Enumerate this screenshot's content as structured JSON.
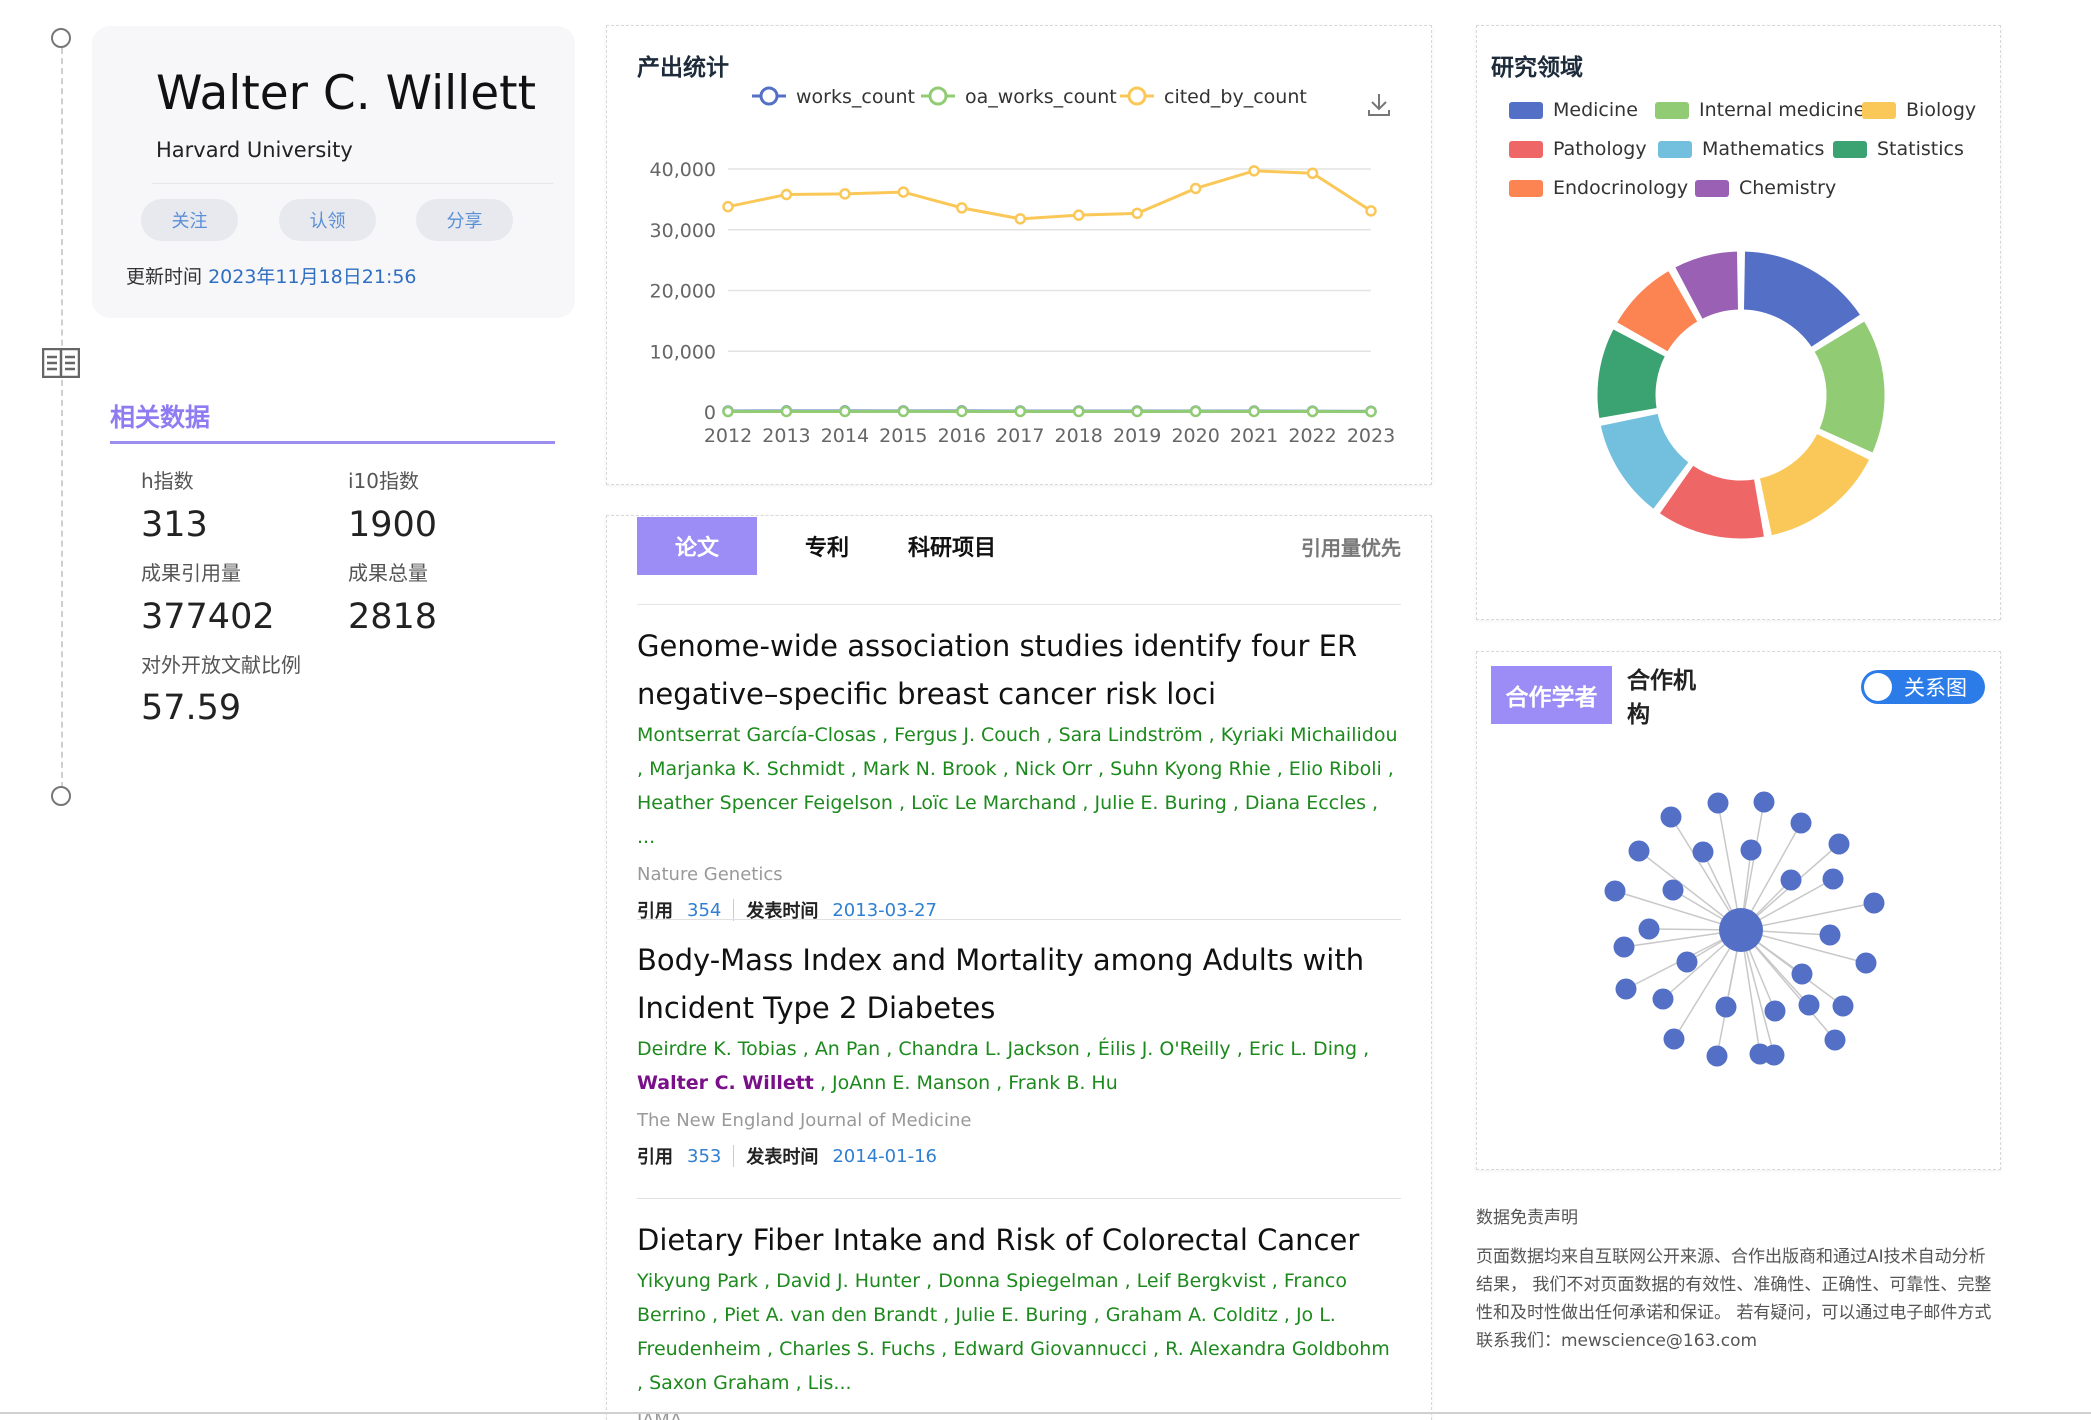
{
  "profile": {
    "name": "Walter C. Willett",
    "institution": "Harvard University",
    "buttons": {
      "follow": "关注",
      "claim": "认领",
      "share": "分享"
    },
    "updated_label": "更新时间",
    "updated_value": "2023年11月18日21:56"
  },
  "related": {
    "title": "相关数据",
    "metrics": [
      {
        "label": "h指数",
        "value": "313"
      },
      {
        "label": "i10指数",
        "value": "1900"
      },
      {
        "label": "成果引用量",
        "value": "377402"
      },
      {
        "label": "成果总量",
        "value": "2818"
      },
      {
        "label": "对外开放文献比例",
        "value": "57.59"
      }
    ]
  },
  "output_stats": {
    "title": "产出统计",
    "icon": "download-icon",
    "chart_data": {
      "type": "line",
      "x": [
        "2012",
        "2013",
        "2014",
        "2015",
        "2016",
        "2017",
        "2018",
        "2019",
        "2020",
        "2021",
        "2022",
        "2023"
      ],
      "series": [
        {
          "name": "works_count",
          "color": "#5470c6",
          "values": [
            150,
            160,
            160,
            170,
            160,
            150,
            150,
            150,
            150,
            140,
            130,
            110
          ]
        },
        {
          "name": "oa_works_count",
          "color": "#91cc75",
          "values": [
            80,
            90,
            90,
            100,
            90,
            90,
            90,
            90,
            100,
            90,
            80,
            70
          ]
        },
        {
          "name": "cited_by_count",
          "color": "#fac858",
          "values": [
            33800,
            35800,
            35900,
            36200,
            33600,
            31800,
            32400,
            32700,
            36800,
            39700,
            39300,
            33100
          ]
        }
      ],
      "y_ticks": [
        "0",
        "10,000",
        "20,000",
        "30,000",
        "40,000"
      ],
      "ylim": [
        0,
        40000
      ],
      "grid": true,
      "legend": "top"
    }
  },
  "papers": {
    "tabs": [
      "论文",
      "专利",
      "科研项目"
    ],
    "sort_label": "引用量优先",
    "cite_label": "引用",
    "date_label": "发表时间",
    "items": [
      {
        "title": "Genome-wide association studies identify four ER negative–specific breast cancer risk loci",
        "authors": [
          "Montserrat García-Closas",
          "Fergus J. Couch",
          "Sara Lindström",
          "Kyriaki Michailidou",
          "Marjanka K. Schmidt",
          "Mark N. Brook",
          "Nick Orr",
          "Suhn Kyong Rhie",
          "Elio Riboli",
          "Heather Spencer Feigelson",
          "Loïc Le Marchand",
          "Julie E. Buring",
          "Diana Eccles"
        ],
        "authors_more": "...",
        "journal": "Nature Genetics",
        "citations": "354",
        "date": "2013-03-27"
      },
      {
        "title": "Body-Mass Index and Mortality among Adults with Incident Type 2 Diabetes",
        "authors": [
          "Deirdre K. Tobias",
          "An Pan",
          "Chandra L. Jackson",
          "Éilis J. O'Reilly",
          "Eric L. Ding",
          "Walter C. Willett",
          "JoAnn E. Manson",
          "Frank B. Hu"
        ],
        "self_author": "Walter C. Willett",
        "journal": "The New England Journal of Medicine",
        "citations": "353",
        "date": "2014-01-16"
      },
      {
        "title": "Dietary Fiber Intake and Risk of Colorectal Cancer",
        "authors": [
          "Yikyung Park",
          "David J. Hunter",
          "Donna Spiegelman",
          "Leif Bergkvist",
          "Franco Berrino",
          "Piet A. van den Brandt",
          "Julie E. Buring",
          "Graham A. Colditz",
          "Jo L. Freudenheim",
          "Charles S. Fuchs",
          "Edward Giovannucci",
          "R. Alexandra Goldbohm",
          "Saxon Graham"
        ],
        "authors_more": "Lis...",
        "journal": "JAMA"
      }
    ]
  },
  "research": {
    "title": "研究领域",
    "chart_data": {
      "type": "pie",
      "donut": true,
      "legend": "top",
      "slices": [
        {
          "name": "Medicine",
          "color": "#5470c6",
          "value": 16
        },
        {
          "name": "Internal medicine",
          "color": "#91cc75",
          "value": 16
        },
        {
          "name": "Biology",
          "color": "#fac858",
          "value": 15
        },
        {
          "name": "Pathology",
          "color": "#ee6666",
          "value": 13
        },
        {
          "name": "Mathematics",
          "color": "#73c0de",
          "value": 12
        },
        {
          "name": "Statistics",
          "color": "#3ba272",
          "value": 11
        },
        {
          "name": "Endocrinology",
          "color": "#fc8452",
          "value": 9
        },
        {
          "name": "Chemistry",
          "color": "#9a60b4",
          "value": 8
        }
      ]
    }
  },
  "collab": {
    "tabs": [
      "合作学者",
      "合作机构"
    ],
    "toggle_label": "关系图",
    "node_color": "#5470c6"
  },
  "disclaimer": {
    "title": "数据免责声明",
    "body": "页面数据均来自互联网公开来源、合作出版商和通过AI技术自动分析结果， 我们不对页面数据的有效性、准确性、正确性、可靠性、完整性和及时性做出任何承诺和保证。 若有疑问，可以通过电子邮件方式联系我们：mewscience@163.com"
  }
}
